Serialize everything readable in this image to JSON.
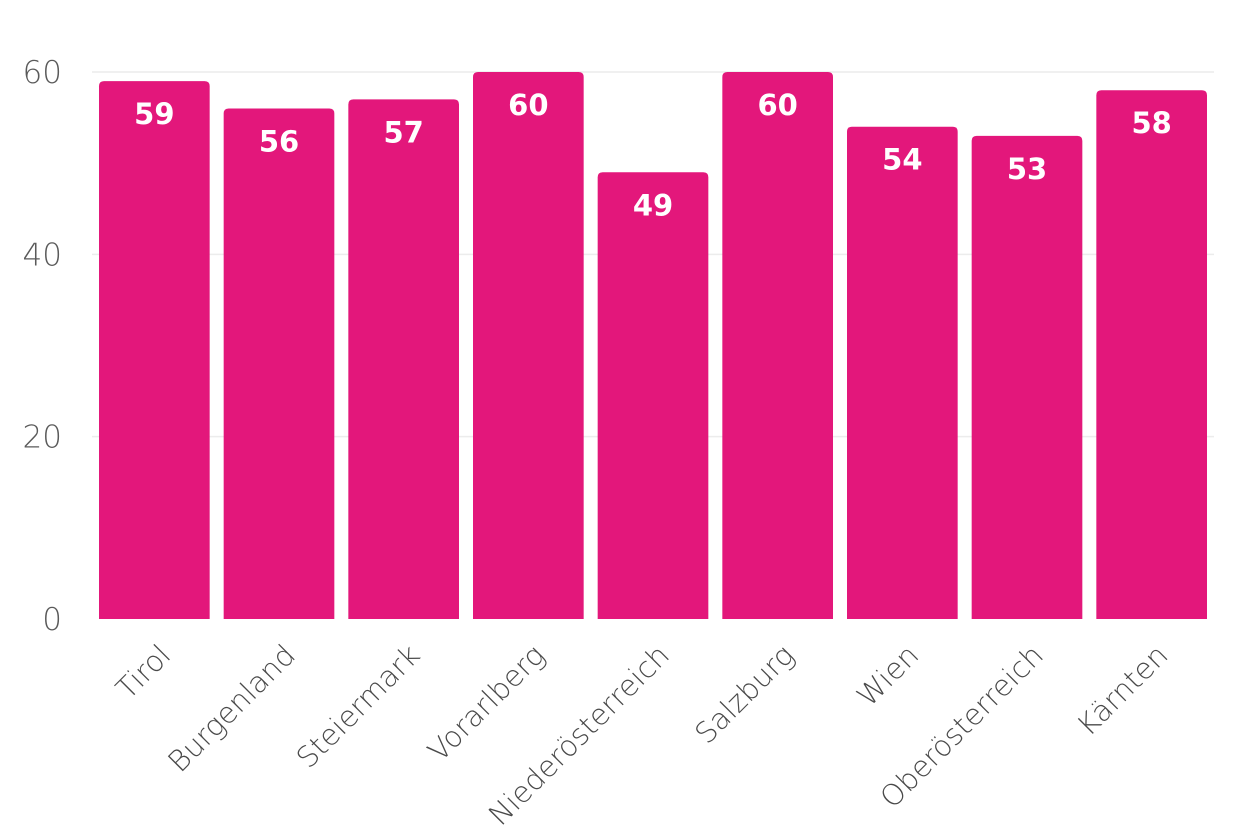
{
  "chart_data": {
    "type": "bar",
    "title": "",
    "xlabel": "",
    "ylabel": "",
    "categories": [
      "Tirol",
      "Burgenland",
      "Steiermark",
      "Vorarlberg",
      "Niederösterreich",
      "Salzburg",
      "Wien",
      "Oberösterreich",
      "Kärnten"
    ],
    "values": [
      59,
      56,
      57,
      60,
      49,
      60,
      54,
      53,
      58
    ],
    "data_labels": [
      "59",
      "56",
      "57",
      "60",
      "49",
      "60",
      "54",
      "53",
      "58"
    ],
    "ylim": [
      0,
      60
    ],
    "y_ticks": [
      0,
      20,
      40,
      60
    ],
    "y_tick_labels": [
      "0",
      "20",
      "40",
      "60"
    ],
    "grid": true,
    "legend": "none",
    "colors": {
      "bar": "#e3177b",
      "data_label": "#ffffff",
      "grid": "#ececec",
      "tick_text": "#5a5a5a"
    }
  }
}
